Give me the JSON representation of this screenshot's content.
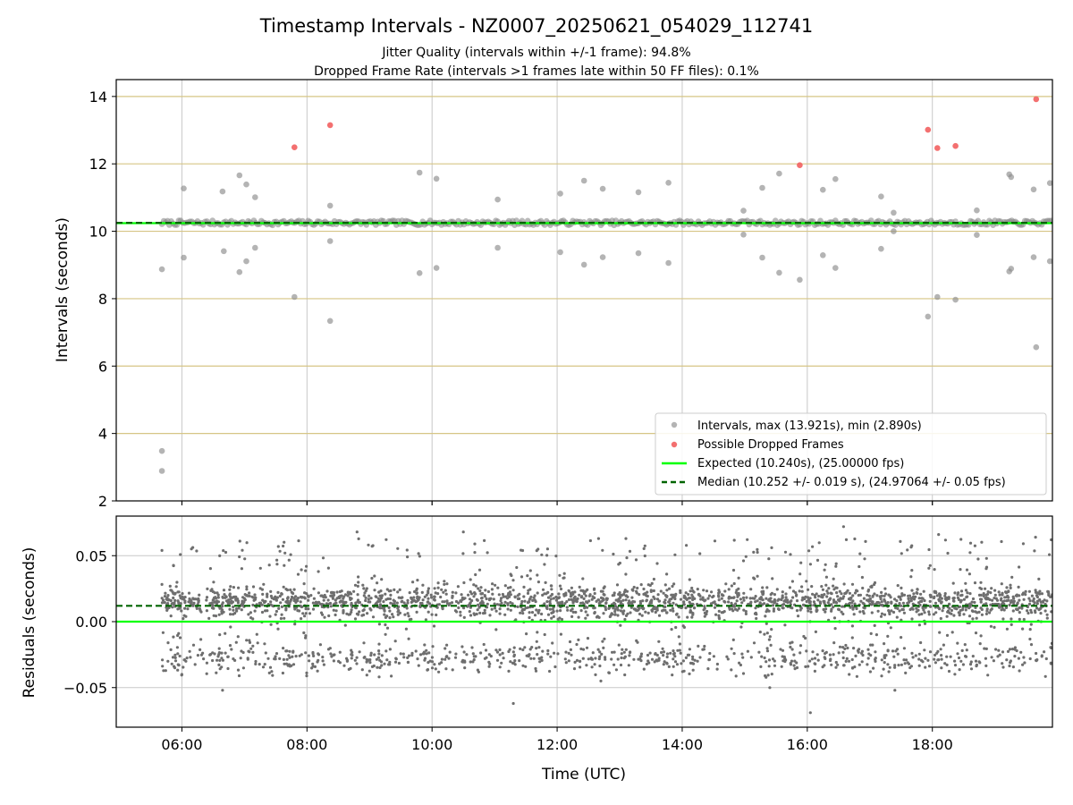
{
  "chart_data": [
    {
      "type": "scatter",
      "title": "Timestamp Intervals - NZ0007_20250621_054029_112741",
      "subtitles": [
        "Jitter Quality (intervals within +/-1 frame): 94.8%",
        "Dropped Frame Rate (intervals >1 frames late within 50 FF files): 0.1%"
      ],
      "xlabel": "",
      "ylabel": "Intervals (seconds)",
      "xlim": [
        4.95,
        19.92
      ],
      "ylim": [
        2,
        14.5
      ],
      "x_unit": "hours UTC",
      "xticks": [
        6,
        8,
        10,
        12,
        14,
        16,
        18
      ],
      "yticks": [
        2,
        4,
        6,
        8,
        10,
        12,
        14
      ],
      "ytick_labels": [
        "2",
        "4",
        "6",
        "8",
        "10",
        "12",
        "14"
      ],
      "grid": {
        "vertical": "#c8c8c8",
        "horizontal": "#d6c585"
      },
      "legend_position": "lower-right",
      "legend": [
        "Intervals, max (13.921s), min (2.890s)",
        "Possible Dropped Frames",
        "Expected (10.240s), (25.00000 fps)",
        "Median (10.252 +/- 0.019 s), (24.97064 +/- 0.05 fps)"
      ],
      "colors": {
        "intervals": "#8c8c8c",
        "dropped": "#f26060",
        "expected": "#00ff00",
        "median": "#006400"
      },
      "expected_line": 10.24,
      "median_line": 10.252,
      "baseline_band": {
        "x_start": 5.68,
        "x_end": 19.92,
        "center": 10.25,
        "spread": 0.07
      },
      "series": [
        {
          "name": "Intervals, max (13.921s), min (2.890s)",
          "points": [
            {
              "x": 5.68,
              "y": 3.48
            },
            {
              "x": 5.68,
              "y": 2.89
            },
            {
              "x": 5.68,
              "y": 8.87
            },
            {
              "x": 6.03,
              "y": 11.27
            },
            {
              "x": 6.03,
              "y": 9.22
            },
            {
              "x": 6.65,
              "y": 11.18
            },
            {
              "x": 6.67,
              "y": 9.41
            },
            {
              "x": 6.92,
              "y": 11.66
            },
            {
              "x": 6.92,
              "y": 8.79
            },
            {
              "x": 7.03,
              "y": 11.39
            },
            {
              "x": 7.03,
              "y": 9.11
            },
            {
              "x": 7.17,
              "y": 11.01
            },
            {
              "x": 7.17,
              "y": 9.51
            },
            {
              "x": 7.8,
              "y": 8.05
            },
            {
              "x": 8.37,
              "y": 10.76
            },
            {
              "x": 8.37,
              "y": 9.71
            },
            {
              "x": 8.37,
              "y": 7.34
            },
            {
              "x": 9.8,
              "y": 11.74
            },
            {
              "x": 9.8,
              "y": 8.76
            },
            {
              "x": 10.07,
              "y": 11.56
            },
            {
              "x": 10.07,
              "y": 8.91
            },
            {
              "x": 11.05,
              "y": 10.94
            },
            {
              "x": 11.05,
              "y": 9.51
            },
            {
              "x": 12.05,
              "y": 11.12
            },
            {
              "x": 12.05,
              "y": 9.38
            },
            {
              "x": 12.43,
              "y": 11.5
            },
            {
              "x": 12.43,
              "y": 9.01
            },
            {
              "x": 12.73,
              "y": 11.26
            },
            {
              "x": 12.73,
              "y": 9.23
            },
            {
              "x": 13.3,
              "y": 11.16
            },
            {
              "x": 13.3,
              "y": 9.35
            },
            {
              "x": 13.78,
              "y": 11.44
            },
            {
              "x": 13.78,
              "y": 9.06
            },
            {
              "x": 14.98,
              "y": 10.61
            },
            {
              "x": 14.98,
              "y": 9.9
            },
            {
              "x": 15.28,
              "y": 11.29
            },
            {
              "x": 15.28,
              "y": 9.22
            },
            {
              "x": 15.55,
              "y": 11.71
            },
            {
              "x": 15.55,
              "y": 8.77
            },
            {
              "x": 15.88,
              "y": 8.56
            },
            {
              "x": 16.25,
              "y": 11.23
            },
            {
              "x": 16.25,
              "y": 9.29
            },
            {
              "x": 16.45,
              "y": 11.55
            },
            {
              "x": 16.45,
              "y": 8.91
            },
            {
              "x": 17.18,
              "y": 11.03
            },
            {
              "x": 17.18,
              "y": 9.48
            },
            {
              "x": 17.38,
              "y": 10.55
            },
            {
              "x": 17.38,
              "y": 10.0
            },
            {
              "x": 17.93,
              "y": 7.47
            },
            {
              "x": 18.08,
              "y": 8.05
            },
            {
              "x": 18.37,
              "y": 7.97
            },
            {
              "x": 18.71,
              "y": 10.62
            },
            {
              "x": 18.71,
              "y": 9.89
            },
            {
              "x": 19.23,
              "y": 11.69
            },
            {
              "x": 19.23,
              "y": 8.81
            },
            {
              "x": 19.26,
              "y": 11.61
            },
            {
              "x": 19.26,
              "y": 8.89
            },
            {
              "x": 19.62,
              "y": 11.24
            },
            {
              "x": 19.62,
              "y": 9.23
            },
            {
              "x": 19.66,
              "y": 6.56
            },
            {
              "x": 19.88,
              "y": 11.43
            },
            {
              "x": 19.88,
              "y": 9.11
            }
          ]
        },
        {
          "name": "Possible Dropped Frames",
          "points": [
            {
              "x": 7.8,
              "y": 12.49
            },
            {
              "x": 8.37,
              "y": 13.15
            },
            {
              "x": 15.88,
              "y": 11.96
            },
            {
              "x": 17.93,
              "y": 13.01
            },
            {
              "x": 18.08,
              "y": 12.47
            },
            {
              "x": 18.37,
              "y": 12.53
            },
            {
              "x": 19.66,
              "y": 13.92
            }
          ]
        }
      ]
    },
    {
      "type": "scatter",
      "xlabel": "Time (UTC)",
      "ylabel": "Residuals (seconds)",
      "xlim": [
        4.95,
        19.92
      ],
      "ylim": [
        -0.08,
        0.08
      ],
      "xticks": [
        6,
        8,
        10,
        12,
        14,
        16,
        18
      ],
      "xtick_labels": [
        "06:00",
        "08:00",
        "10:00",
        "12:00",
        "14:00",
        "16:00",
        "18:00"
      ],
      "yticks": [
        0.05,
        0.0,
        -0.05
      ],
      "ytick_labels": [
        "0.05",
        "0.00",
        "−0.05"
      ],
      "grid": {
        "vertical": "#c8c8c8",
        "horizontal": "#c8c8c8"
      },
      "expected_line": 0.0,
      "median_line": 0.012,
      "residual_distribution": {
        "x_start": 5.68,
        "x_end": 19.92,
        "count": 3000,
        "core_center": 0.015,
        "core_spread": 0.006,
        "lower_center": -0.028,
        "lower_spread": 0.005
      },
      "series": [
        {
          "name": "Residuals",
          "points": [
            {
              "x": 11.3,
              "y": -0.062
            },
            {
              "x": 16.05,
              "y": -0.069
            },
            {
              "x": 16.58,
              "y": 0.072
            },
            {
              "x": 8.8,
              "y": 0.068
            },
            {
              "x": 10.5,
              "y": 0.068
            },
            {
              "x": 6.0,
              "y": -0.04
            },
            {
              "x": 6.65,
              "y": -0.052
            },
            {
              "x": 12.7,
              "y": -0.045
            },
            {
              "x": 13.1,
              "y": 0.063
            },
            {
              "x": 15.4,
              "y": -0.05
            },
            {
              "x": 17.4,
              "y": -0.052
            },
            {
              "x": 18.1,
              "y": 0.066
            },
            {
              "x": 19.65,
              "y": 0.064
            },
            {
              "x": 19.9,
              "y": 0.062
            },
            {
              "x": 5.68,
              "y": 0.054
            }
          ]
        }
      ]
    }
  ]
}
